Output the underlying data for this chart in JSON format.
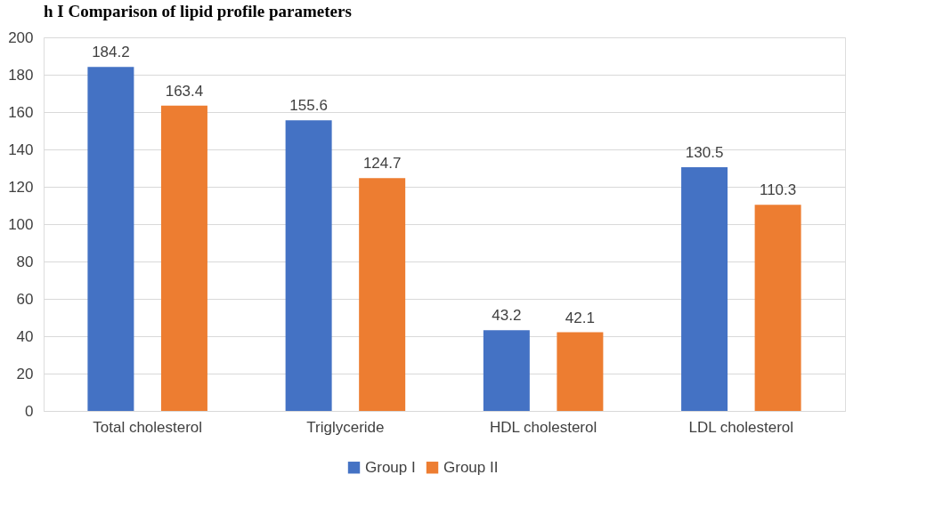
{
  "chart_data": {
    "type": "bar",
    "title": "h I Comparison of lipid profile parameters",
    "categories": [
      "Total cholesterol",
      "Triglyceride",
      "HDL cholesterol",
      "LDL cholesterol"
    ],
    "series": [
      {
        "name": "Group I",
        "color": "#4472c4",
        "values": [
          184.2,
          155.6,
          43.2,
          130.5
        ]
      },
      {
        "name": "Group II",
        "color": "#ed7d31",
        "values": [
          163.4,
          124.7,
          42.1,
          110.3
        ]
      }
    ],
    "ylim": [
      0,
      200
    ],
    "yticks": [
      0,
      20,
      40,
      60,
      80,
      100,
      120,
      140,
      160,
      180,
      200
    ],
    "grid": "y",
    "legend": "bottom",
    "data_labels": true
  }
}
